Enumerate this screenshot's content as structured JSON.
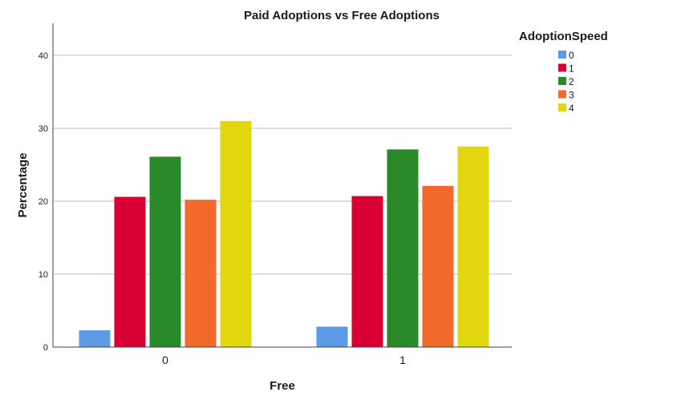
{
  "chart_data": {
    "type": "bar",
    "title": "Paid Adoptions vs Free Adoptions",
    "xlabel": "Free",
    "ylabel": "Percentage",
    "categories": [
      "0",
      "1"
    ],
    "ylim": [
      0,
      44
    ],
    "yticks": [
      "0",
      "10",
      "20",
      "30",
      "40"
    ],
    "grid": true,
    "legend": {
      "title": "AdoptionSpeed",
      "placement": "right"
    },
    "series": [
      {
        "name": "0",
        "color": "#5b9be8",
        "values": [
          2.3,
          2.8
        ]
      },
      {
        "name": "1",
        "color": "#d90033",
        "values": [
          20.6,
          20.7
        ]
      },
      {
        "name": "2",
        "color": "#2a8a2a",
        "values": [
          26.1,
          27.1
        ]
      },
      {
        "name": "3",
        "color": "#f26a2b",
        "values": [
          20.2,
          22.1
        ]
      },
      {
        "name": "4",
        "color": "#e3d80f",
        "values": [
          31.0,
          27.5
        ]
      }
    ]
  }
}
